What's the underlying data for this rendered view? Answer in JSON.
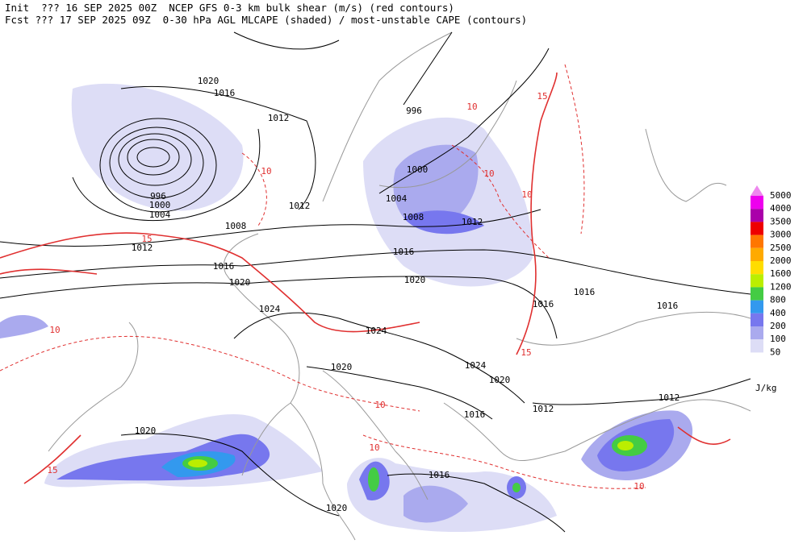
{
  "header": {
    "line1": "Init  ??? 16 SEP 2025 00Z  NCEP GFS 0-3 km bulk shear (m/s) (red contours)",
    "line2": "Fcst ??? 17 SEP 2025 09Z  0-30 hPa AGL MLCAPE (shaded) / most-unstable CAPE (contours)"
  },
  "legend": {
    "items": [
      {
        "label": "5000",
        "color": "#ee88ee"
      },
      {
        "label": "4000",
        "color": "#ee00ee"
      },
      {
        "label": "3500",
        "color": "#aa00aa"
      },
      {
        "label": "3000",
        "color": "#ee0000"
      },
      {
        "label": "2500",
        "color": "#ff7700"
      },
      {
        "label": "2000",
        "color": "#ffaa00"
      },
      {
        "label": "1600",
        "color": "#ffdd00"
      },
      {
        "label": "1200",
        "color": "#bbee00"
      },
      {
        "label": "800",
        "color": "#44cc44"
      },
      {
        "label": "400",
        "color": "#3399ee"
      },
      {
        "label": "200",
        "color": "#7777ee"
      },
      {
        "label": "100",
        "color": "#aaaaee"
      },
      {
        "label": "50",
        "color": "#ddddf6"
      }
    ],
    "unit": "J/kg"
  },
  "isobar_labels": [
    "1020",
    "1016",
    "1012",
    "996",
    "1000",
    "1004",
    "1008",
    "1012",
    "1012",
    "1008",
    "1012",
    "1016",
    "1016",
    "1020",
    "1020",
    "1016",
    "1016",
    "1016",
    "1024",
    "1024",
    "1024",
    "1020",
    "1020",
    "1016",
    "1012",
    "1012",
    "1020",
    "1016",
    "1020",
    "996",
    "1000",
    "1004"
  ],
  "shear_labels": [
    "10",
    "15",
    "10",
    "10",
    "15",
    "10",
    "15",
    "10",
    "10",
    "10",
    "15",
    "10"
  ]
}
